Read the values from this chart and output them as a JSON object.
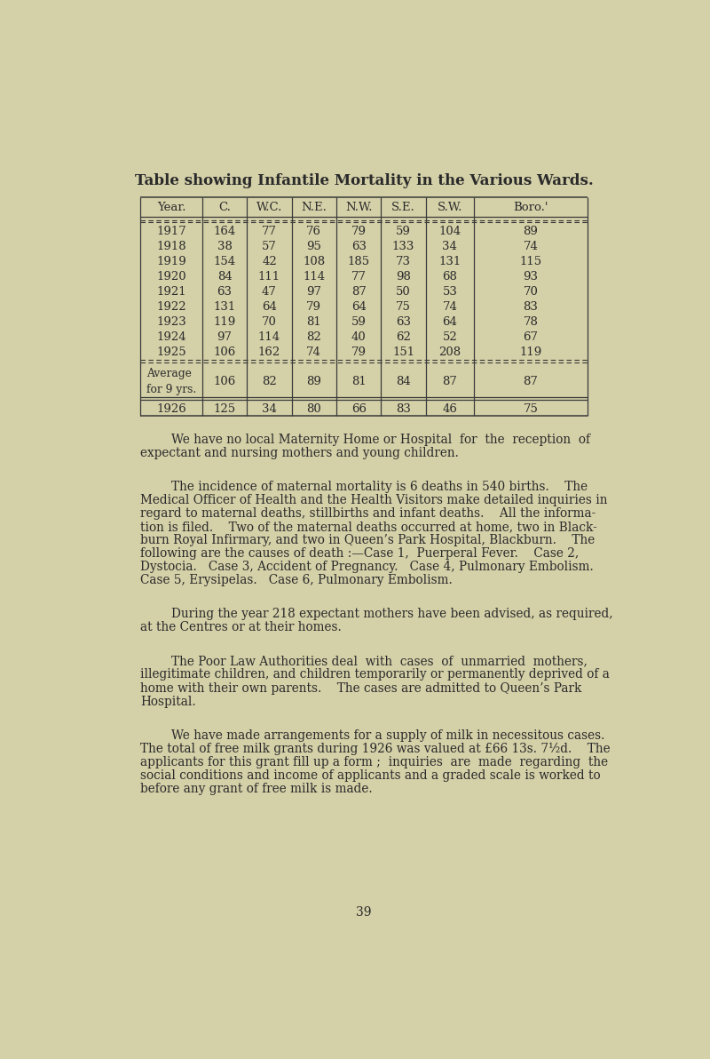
{
  "bg_color": "#d4d0a8",
  "title": "Table showing Infantile Mortality in the Various Wards.",
  "title_fontsize": 12,
  "table_headers": [
    "Year.",
    "C.",
    "W.C.",
    "N.E.",
    "N.W.",
    "S.E.",
    "S.W.",
    "Boro.'"
  ],
  "table_data": [
    [
      "1917",
      "164",
      "77",
      "76",
      "79",
      "59",
      "104",
      "89"
    ],
    [
      "1918",
      "38",
      "57",
      "95",
      "63",
      "133",
      "34",
      "74"
    ],
    [
      "1919",
      "154",
      "42",
      "108",
      "185",
      "73",
      "131",
      "115"
    ],
    [
      "1920",
      "84",
      "111",
      "114",
      "77",
      "98",
      "68",
      "93"
    ],
    [
      "1921",
      "63",
      "47",
      "97",
      "87",
      "50",
      "53",
      "70"
    ],
    [
      "1922",
      "131",
      "64",
      "79",
      "64",
      "75",
      "74",
      "83"
    ],
    [
      "1923",
      "119",
      "70",
      "81",
      "59",
      "63",
      "64",
      "78"
    ],
    [
      "1924",
      "97",
      "114",
      "82",
      "40",
      "62",
      "52",
      "67"
    ],
    [
      "1925",
      "106",
      "162",
      "74",
      "79",
      "151",
      "208",
      "119"
    ]
  ],
  "average_row": [
    "Average\nfor 9 yrs.",
    "106",
    "82",
    "89",
    "81",
    "84",
    "87",
    "87"
  ],
  "last_row": [
    "1926",
    "125",
    "34",
    "80",
    "66",
    "83",
    "46",
    "75"
  ],
  "paragraphs": [
    [
      "        We have no local Maternity Home or Hospital  for  the  reception  of",
      "expectant and nursing mothers and young children."
    ],
    [
      "        The incidence of maternal mortality is 6 deaths in 540 births.    The",
      "Medical Officer of Health and the Health Visitors make detailed inquiries in",
      "regard to maternal deaths, stillbirths and infant deaths.    All the informa-",
      "tion is filed.    Two of the maternal deaths occurred at home, two in Black-",
      "burn Royal Infirmary, and two in Queen’s Park Hospital, Blackburn.    The",
      "following are the causes of death :—Case 1,  Puerperal Fever.    Case 2,",
      "Dystocia.   Case 3, Accident of Pregnancy.   Case 4, Pulmonary Embolism.",
      "Case 5, Erysipelas.   Case 6, Pulmonary Embolism."
    ],
    [
      "        During the year 218 expectant mothers have been advised, as required,",
      "at the Centres or at their homes."
    ],
    [
      "        The Poor Law Authorities deal  with  cases  of  unmarried  mothers,",
      "illegitimate children, and children temporarily or permanently deprived of a",
      "home with their own parents.    The cases are admitted to Queen’s Park",
      "Hospital."
    ],
    [
      "        We have made arrangements for a supply of milk in necessitous cases.",
      "The total of free milk grants during 1926 was valued at £66 13s. 7½d.    The",
      "applicants for this grant fill up a form ;  inquiries  are  made  regarding  the",
      "social conditions and income of applicants and a graded scale is worked to",
      "before any grant of free milk is made."
    ]
  ],
  "page_number": "39",
  "text_color": "#2a2a2a",
  "line_color": "#3a3a3a"
}
